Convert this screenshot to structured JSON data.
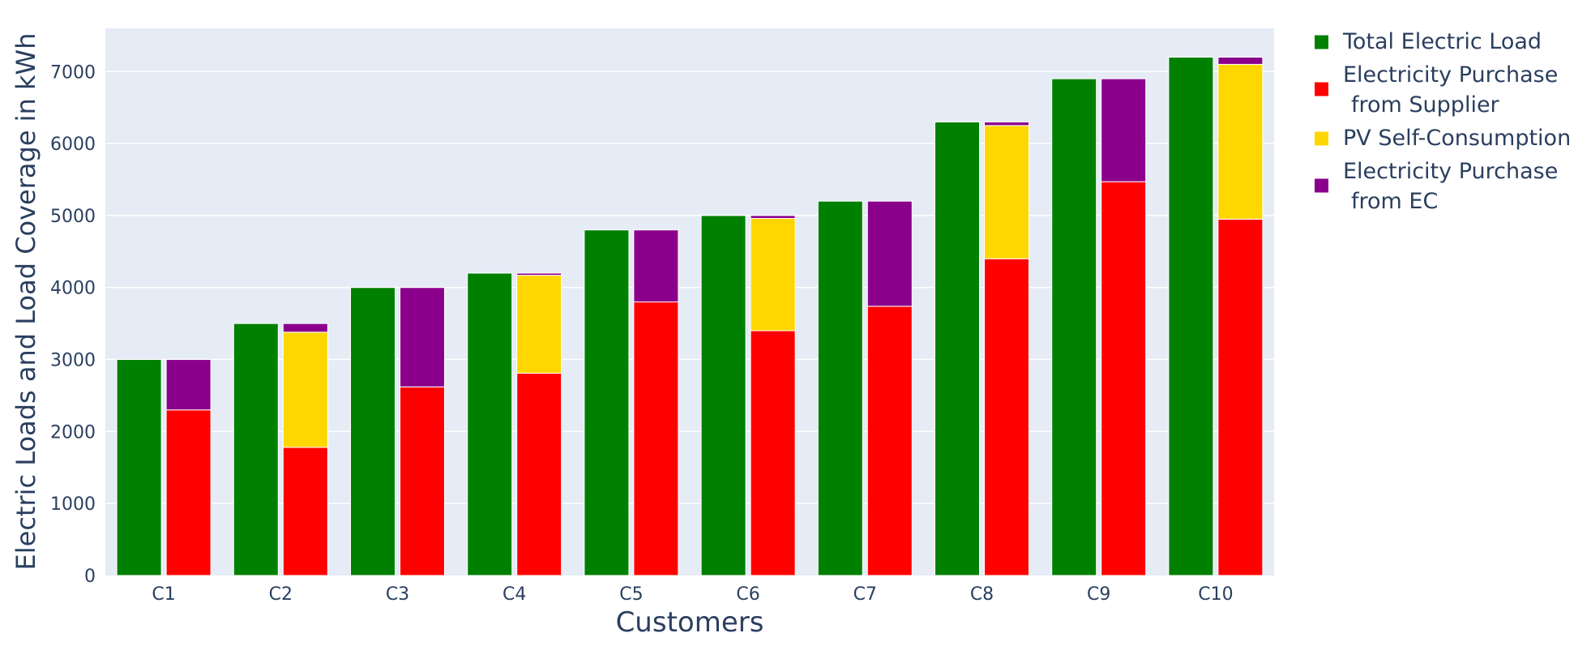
{
  "chart_data": {
    "type": "bar",
    "title": "",
    "xlabel": "Customers",
    "ylabel": "Electric Loads and Load Coverage in kWh",
    "categories": [
      "C1",
      "C2",
      "C3",
      "C4",
      "C5",
      "C6",
      "C7",
      "C8",
      "C9",
      "C10"
    ],
    "ylim": [
      0,
      7600
    ],
    "y_ticks": [
      0,
      1000,
      2000,
      3000,
      4000,
      5000,
      6000,
      7000
    ],
    "grid": true,
    "legend_position": "right",
    "colors": {
      "plot_bg": "#e5ecf6",
      "grid": "#ffffff",
      "axis_text": "#2a3f5f"
    },
    "series": [
      {
        "name": "Total Electric Load",
        "color": "#008000",
        "values": [
          3000,
          3500,
          4000,
          4200,
          4800,
          5000,
          5200,
          6300,
          6900,
          7200
        ]
      },
      {
        "name": "Electricity Purchase\n from Supplier",
        "color": "#ff0000",
        "values": [
          2300,
          1780,
          2620,
          2810,
          3800,
          3400,
          3740,
          4400,
          5470,
          4950
        ]
      },
      {
        "name": "PV Self-Consumption",
        "color": "#ffd700",
        "values": [
          0,
          1600,
          0,
          1360,
          0,
          1560,
          0,
          1850,
          0,
          2150
        ]
      },
      {
        "name": "Electricity Purchase\n from EC",
        "color": "#8b008b",
        "values": [
          700,
          120,
          1380,
          30,
          1000,
          40,
          1460,
          50,
          1430,
          100
        ]
      }
    ]
  }
}
